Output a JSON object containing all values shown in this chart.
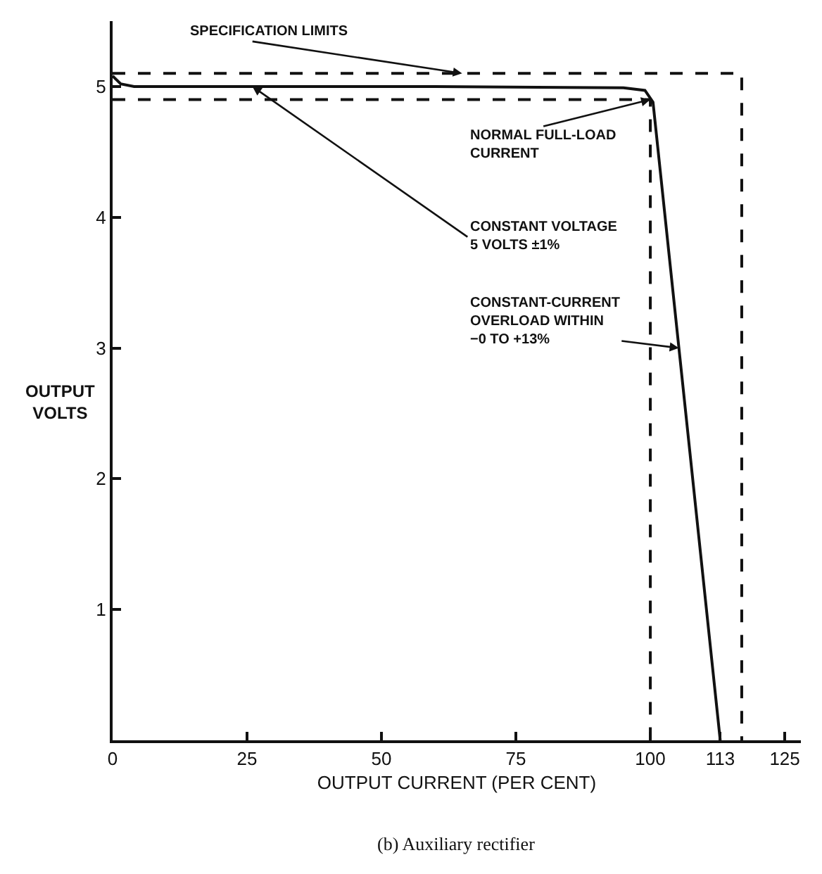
{
  "chart_data": {
    "type": "line",
    "xlabel": "OUTPUT CURRENT (PER CENT)",
    "ylabel": "OUTPUT\nVOLTS",
    "series": [
      {
        "color": "#111111",
        "x": [
          0,
          1.5,
          4,
          26,
          60,
          95,
          99,
          100.5,
          113
        ],
        "values": [
          5.08,
          5.02,
          5.0,
          5.0,
          5.0,
          4.99,
          4.97,
          4.88,
          0
        ],
        "line_style": "solid"
      },
      {
        "color": "#111111",
        "x": [
          0,
          117,
          117
        ],
        "values": [
          5.1,
          5.1,
          0
        ],
        "line_style": "dashed"
      },
      {
        "color": "#111111",
        "x": [
          0,
          100,
          100
        ],
        "values": [
          4.9,
          4.9,
          0
        ],
        "line_style": "dashed"
      }
    ],
    "xlim": [
      0,
      128
    ],
    "ylim": [
      0,
      5.5
    ],
    "xticks": [
      0,
      25,
      50,
      75,
      100,
      113,
      125
    ],
    "yticks": [
      {
        "value": 0,
        "label": null
      },
      1,
      2,
      3,
      4,
      5
    ],
    "marker": "none",
    "annotations": [
      {
        "text": "SPECIFICATION LIMITS",
        "x": 65,
        "y": 5.1
      },
      {
        "text": "NORMAL FULL-LOAD\nCURRENT",
        "x": 100,
        "y": 4.9
      },
      {
        "text": "CONSTANT VOLTAGE\n5 VOLTS ±1%",
        "x": 26,
        "y": 5.0
      },
      {
        "text": "CONSTANT-CURRENT\nOVERLOAD WITHIN\n−0 TO +13%",
        "x": 105.3,
        "y": 3.0
      },
      "(b) Auxiliary rectifier"
    ]
  }
}
